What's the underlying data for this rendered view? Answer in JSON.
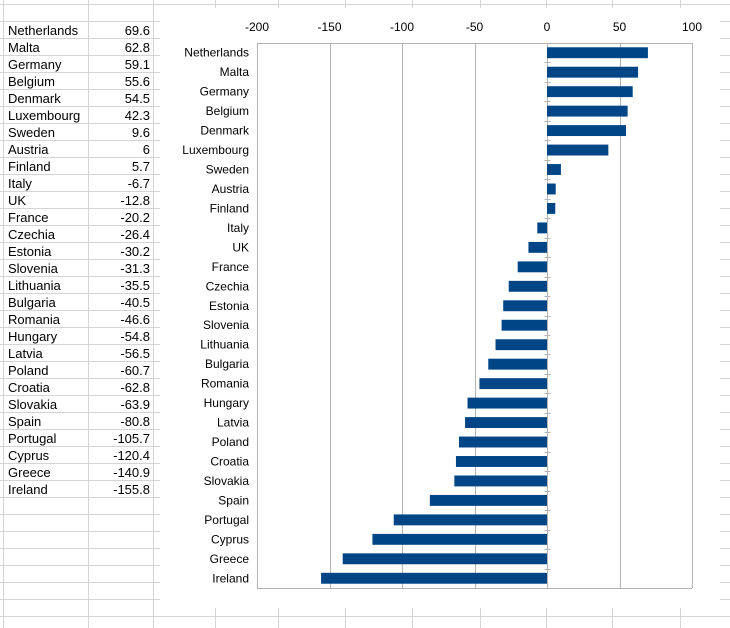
{
  "table": {
    "rows": [
      {
        "country": "Netherlands",
        "value": "69.6"
      },
      {
        "country": "Malta",
        "value": "62.8"
      },
      {
        "country": "Germany",
        "value": "59.1"
      },
      {
        "country": "Belgium",
        "value": "55.6"
      },
      {
        "country": "Denmark",
        "value": "54.5"
      },
      {
        "country": "Luxembourg",
        "value": "42.3"
      },
      {
        "country": "Sweden",
        "value": "9.6"
      },
      {
        "country": "Austria",
        "value": "6"
      },
      {
        "country": "Finland",
        "value": "5.7"
      },
      {
        "country": "Italy",
        "value": "-6.7"
      },
      {
        "country": "UK",
        "value": "-12.8"
      },
      {
        "country": "France",
        "value": "-20.2"
      },
      {
        "country": "Czechia",
        "value": "-26.4"
      },
      {
        "country": "Estonia",
        "value": "-30.2"
      },
      {
        "country": "Slovenia",
        "value": "-31.3"
      },
      {
        "country": "Lithuania",
        "value": "-35.5"
      },
      {
        "country": "Bulgaria",
        "value": "-40.5"
      },
      {
        "country": "Romania",
        "value": "-46.6"
      },
      {
        "country": "Hungary",
        "value": "-54.8"
      },
      {
        "country": "Latvia",
        "value": "-56.5"
      },
      {
        "country": "Poland",
        "value": "-60.7"
      },
      {
        "country": "Croatia",
        "value": "-62.8"
      },
      {
        "country": "Slovakia",
        "value": "-63.9"
      },
      {
        "country": "Spain",
        "value": "-80.8"
      },
      {
        "country": "Portugal",
        "value": "-105.7"
      },
      {
        "country": "Cyprus",
        "value": "-120.4"
      },
      {
        "country": "Greece",
        "value": "-140.9"
      },
      {
        "country": "Ireland",
        "value": "-155.8"
      }
    ]
  },
  "chart_data": {
    "type": "bar",
    "orientation": "horizontal",
    "title": "",
    "xlabel": "",
    "ylabel": "",
    "xlim": [
      -200,
      100
    ],
    "x_ticks": [
      -200,
      -150,
      -100,
      -50,
      0,
      50,
      100
    ],
    "x_axis_position": "top",
    "grid": true,
    "categories": [
      "Netherlands",
      "Malta",
      "Germany",
      "Belgium",
      "Denmark",
      "Luxembourg",
      "Sweden",
      "Austria",
      "Finland",
      "Italy",
      "UK",
      "France",
      "Czechia",
      "Estonia",
      "Slovenia",
      "Lithuania",
      "Bulgaria",
      "Romania",
      "Hungary",
      "Latvia",
      "Poland",
      "Croatia",
      "Slovakia",
      "Spain",
      "Portugal",
      "Cyprus",
      "Greece",
      "Ireland"
    ],
    "values": [
      69.6,
      62.8,
      59.1,
      55.6,
      54.5,
      42.3,
      9.6,
      6,
      5.7,
      -6.7,
      -12.8,
      -20.2,
      -26.4,
      -30.2,
      -31.3,
      -35.5,
      -40.5,
      -46.6,
      -54.8,
      -56.5,
      -60.7,
      -62.8,
      -63.9,
      -80.8,
      -105.7,
      -120.4,
      -140.9,
      -155.8
    ],
    "bar_color": "#004586"
  }
}
